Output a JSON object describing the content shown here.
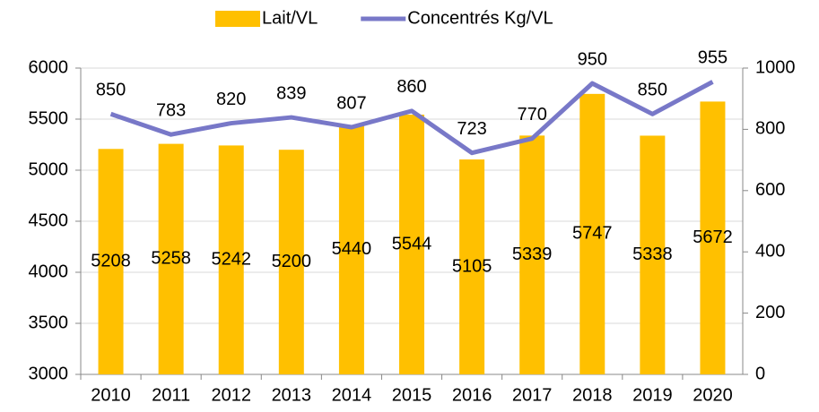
{
  "chart_data": {
    "type": "bar",
    "categories": [
      "2010",
      "2011",
      "2012",
      "2013",
      "2014",
      "2015",
      "2016",
      "2017",
      "2018",
      "2019",
      "2020"
    ],
    "series": [
      {
        "name": "Lait/VL",
        "type": "bar",
        "color": "#ffc000",
        "values": [
          5208,
          5258,
          5242,
          5200,
          5440,
          5544,
          5105,
          5339,
          5747,
          5338,
          5672
        ]
      },
      {
        "name": "Concentrés Kg/VL",
        "type": "line",
        "axis": "y2",
        "color": "#7878c8",
        "values": [
          850,
          783,
          820,
          839,
          807,
          860,
          723,
          770,
          950,
          850,
          955
        ]
      }
    ],
    "ylim": [
      3000,
      6000
    ],
    "yticks": [
      3000,
      3500,
      4000,
      4500,
      5000,
      5500,
      6000
    ],
    "y2lim": [
      0,
      1000
    ],
    "y2ticks": [
      0,
      200,
      400,
      600,
      800,
      1000
    ],
    "grid": true,
    "legend": "top"
  }
}
